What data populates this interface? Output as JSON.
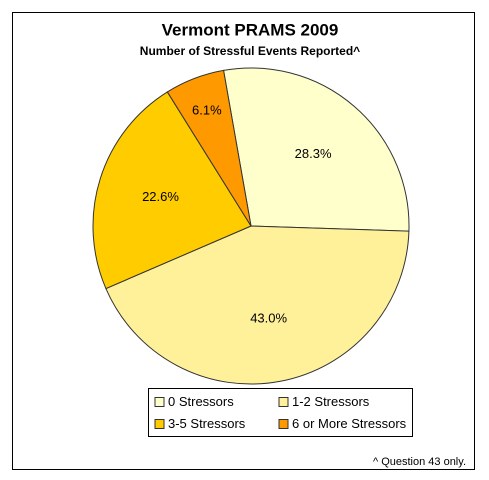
{
  "chart_data": {
    "type": "pie",
    "title": "Vermont PRAMS 2009",
    "subtitle": "Number of Stressful Events Reported^",
    "categories": [
      "0 Stressors",
      "1-2 Stressors",
      "3-5 Stressors",
      "6 or More Stressors"
    ],
    "values": [
      28.3,
      43.0,
      22.6,
      6.1
    ],
    "value_labels": [
      "28.3%",
      "43.0%",
      "22.6%",
      "6.1%"
    ],
    "colors": [
      "#ffffcc",
      "#fff09a",
      "#ffcc00",
      "#ff9900"
    ],
    "footnote": "^ Question 43 only."
  }
}
